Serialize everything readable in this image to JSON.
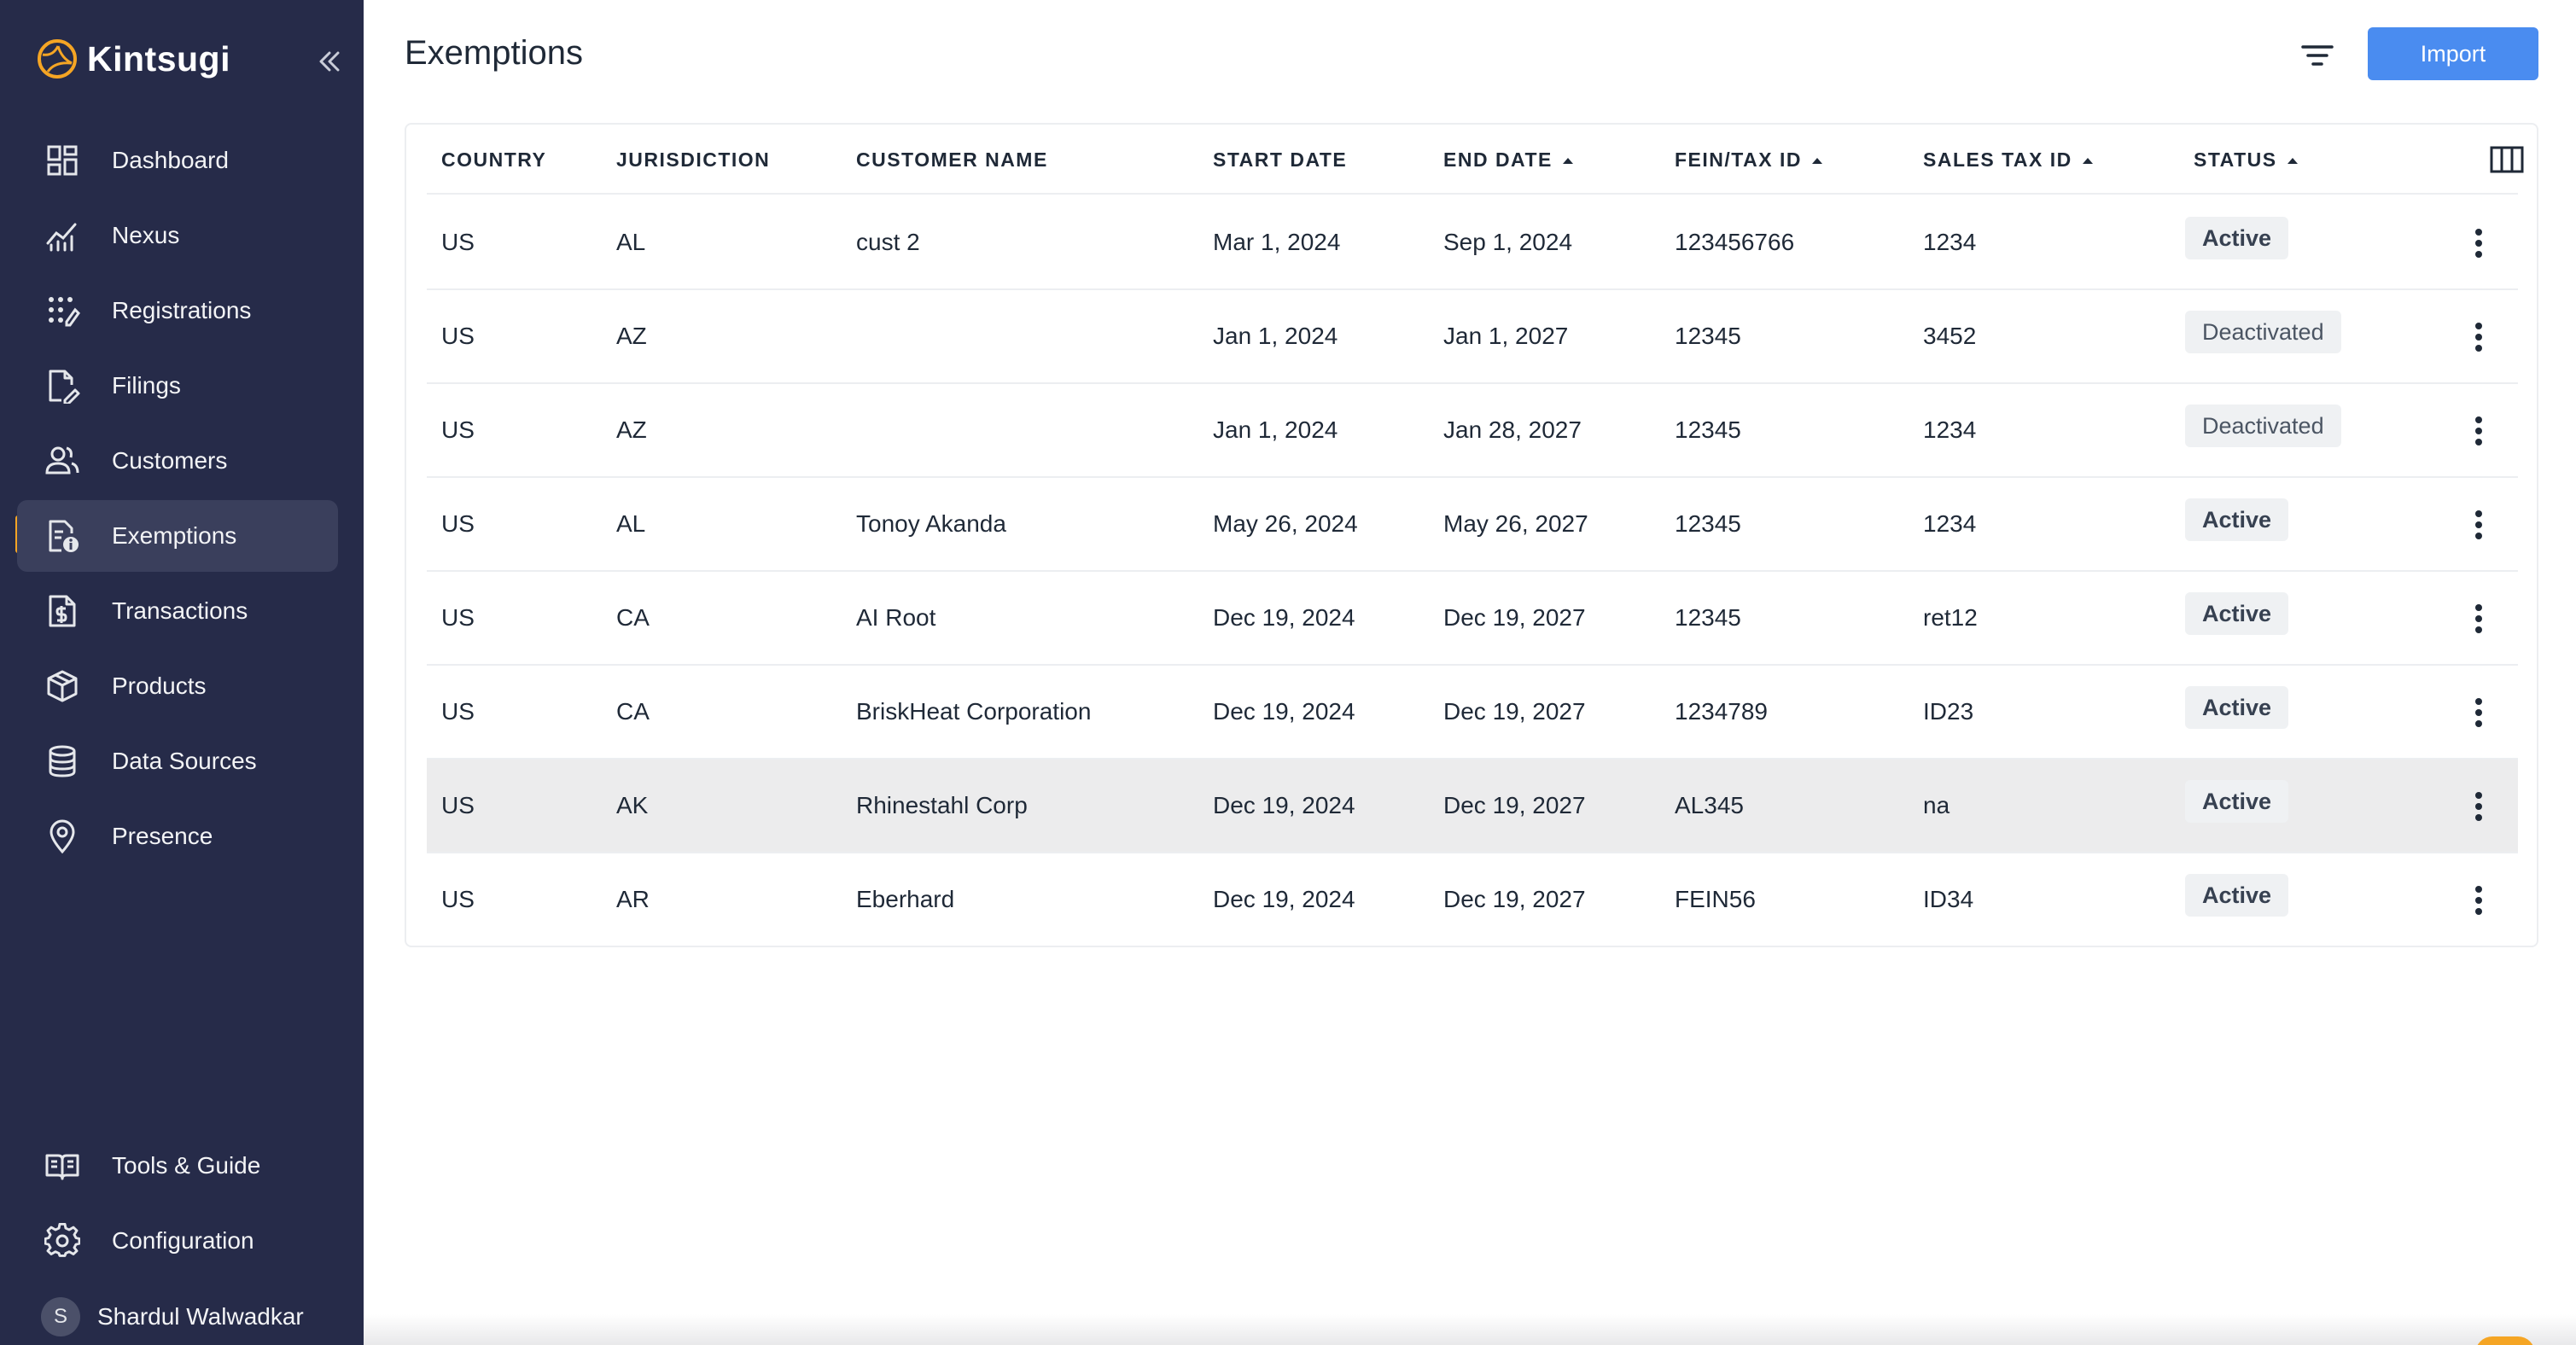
{
  "brand": {
    "name": "Kintsugi"
  },
  "sidebar": {
    "items": [
      {
        "label": "Dashboard",
        "icon": "dashboard-icon"
      },
      {
        "label": "Nexus",
        "icon": "chart-line-icon"
      },
      {
        "label": "Registrations",
        "icon": "registrations-icon"
      },
      {
        "label": "Filings",
        "icon": "file-edit-icon"
      },
      {
        "label": "Customers",
        "icon": "users-icon"
      },
      {
        "label": "Exemptions",
        "icon": "file-info-icon",
        "active": true
      },
      {
        "label": "Transactions",
        "icon": "file-dollar-icon"
      },
      {
        "label": "Products",
        "icon": "box-icon"
      },
      {
        "label": "Data Sources",
        "icon": "database-icon"
      },
      {
        "label": "Presence",
        "icon": "location-pin-icon"
      }
    ],
    "bottom_items": [
      {
        "label": "Tools & Guide",
        "icon": "book-icon"
      },
      {
        "label": "Configuration",
        "icon": "gear-icon"
      }
    ],
    "user": {
      "initial": "S",
      "name": "Shardul Walwadkar"
    }
  },
  "header": {
    "title": "Exemptions",
    "import_label": "Import"
  },
  "table": {
    "columns": [
      "COUNTRY",
      "JURISDICTION",
      "CUSTOMER NAME",
      "START DATE",
      "END DATE",
      "FEIN/TAX ID",
      "SALES TAX ID",
      "STATUS"
    ],
    "rows": [
      {
        "country": "US",
        "jurisdiction": "AL",
        "customer": "cust 2",
        "start": "Mar 1, 2024",
        "end": "Sep 1, 2024",
        "fein": "123456766",
        "sales_tax_id": "1234",
        "status": "Active"
      },
      {
        "country": "US",
        "jurisdiction": "AZ",
        "customer": "",
        "start": "Jan 1, 2024",
        "end": "Jan 1, 2027",
        "fein": "12345",
        "sales_tax_id": "3452",
        "status": "Deactivated"
      },
      {
        "country": "US",
        "jurisdiction": "AZ",
        "customer": "",
        "start": "Jan 1, 2024",
        "end": "Jan 28, 2027",
        "fein": "12345",
        "sales_tax_id": "1234",
        "status": "Deactivated"
      },
      {
        "country": "US",
        "jurisdiction": "AL",
        "customer": "Tonoy Akanda",
        "start": "May 26, 2024",
        "end": "May 26, 2027",
        "fein": "12345",
        "sales_tax_id": "1234",
        "status": "Active"
      },
      {
        "country": "US",
        "jurisdiction": "CA",
        "customer": "AI Root",
        "start": "Dec 19, 2024",
        "end": "Dec 19, 2027",
        "fein": "12345",
        "sales_tax_id": "ret12",
        "status": "Active"
      },
      {
        "country": "US",
        "jurisdiction": "CA",
        "customer": "BriskHeat Corporation",
        "start": "Dec 19, 2024",
        "end": "Dec 19, 2027",
        "fein": "1234789",
        "sales_tax_id": "ID23",
        "status": "Active"
      },
      {
        "country": "US",
        "jurisdiction": "AK",
        "customer": "Rhinestahl Corp",
        "start": "Dec 19, 2024",
        "end": "Dec 19, 2027",
        "fein": "AL345",
        "sales_tax_id": "na",
        "status": "Active"
      },
      {
        "country": "US",
        "jurisdiction": "AR",
        "customer": "Eberhard",
        "start": "Dec 19, 2024",
        "end": "Dec 19, 2027",
        "fein": "FEIN56",
        "sales_tax_id": "ID34",
        "status": "Active"
      }
    ]
  },
  "colors": {
    "sidebar_bg": "#262b49",
    "accent": "#f5a524",
    "primary_button": "#4a8cf0"
  }
}
